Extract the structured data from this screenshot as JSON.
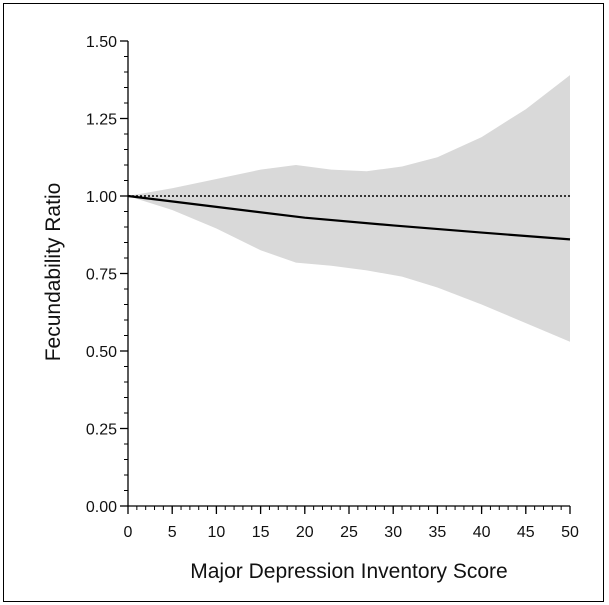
{
  "chart_data": {
    "type": "line",
    "title": "",
    "xlabel": "Major Depression Inventory Score",
    "ylabel": "Fecundability Ratio",
    "xlim": [
      0,
      50
    ],
    "ylim": [
      0.0,
      1.5
    ],
    "x_ticks": [
      0,
      5,
      10,
      15,
      20,
      25,
      30,
      35,
      40,
      45,
      50
    ],
    "x_tick_labels": [
      "0",
      "5",
      "10",
      "15",
      "20",
      "25",
      "30",
      "35",
      "40",
      "45",
      "50"
    ],
    "y_ticks": [
      0.0,
      0.25,
      0.5,
      0.75,
      1.0,
      1.25,
      1.5
    ],
    "y_tick_labels": [
      "0.00",
      "0.25",
      "0.50",
      "0.75",
      "1.00",
      "1.25",
      "1.50"
    ],
    "x_minor_step": 1,
    "y_minor_step": 0.05,
    "grid": false,
    "reference_line": {
      "y": 1.0,
      "style": "dotted",
      "color": "#000000"
    },
    "series": [
      {
        "style": "solid",
        "color": "#000000",
        "x": [
          0,
          10,
          20,
          30,
          40,
          50
        ],
        "y": [
          1.0,
          0.965,
          0.93,
          0.905,
          0.882,
          0.86
        ]
      }
    ],
    "confidence_band": {
      "color": "#d9d9d9",
      "x": [
        0,
        5,
        10,
        15,
        19,
        23,
        27,
        31,
        35,
        40,
        45,
        50
      ],
      "upper": [
        1.0,
        1.025,
        1.055,
        1.085,
        1.1,
        1.085,
        1.08,
        1.095,
        1.125,
        1.19,
        1.28,
        1.39
      ],
      "lower": [
        1.0,
        0.955,
        0.895,
        0.825,
        0.785,
        0.775,
        0.76,
        0.74,
        0.705,
        0.65,
        0.59,
        0.53
      ]
    }
  }
}
